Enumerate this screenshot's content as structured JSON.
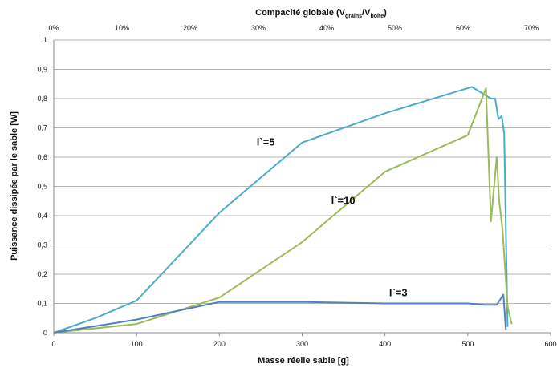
{
  "chart_data": {
    "type": "line",
    "xlabel": "Masse réelle sable [g]",
    "ylabel": "Puissance dissipée par le sable [W]",
    "secondary_x_axis": {
      "label_main": "Compacité globale (V",
      "label_sub1": "grains",
      "label_mid": "/V",
      "label_sub2": "boîte",
      "label_end": ")",
      "ticks": [
        "0%",
        "10%",
        "20%",
        "30%",
        "40%",
        "50%",
        "60%",
        "70%"
      ]
    },
    "xlim": [
      0,
      600
    ],
    "ylim": [
      0,
      1
    ],
    "x_ticks": [
      "0",
      "100",
      "200",
      "300",
      "400",
      "500",
      "600"
    ],
    "y_ticks": [
      "0",
      "0,1",
      "0,2",
      "0,3",
      "0,4",
      "0,5",
      "0,6",
      "0,7",
      "0,8",
      "0,9",
      "1"
    ],
    "grid": "horizontal",
    "series": [
      {
        "color": "#4bacc6",
        "points": [
          [
            0,
            0
          ],
          [
            50,
            0.05
          ],
          [
            100,
            0.11
          ],
          [
            200,
            0.41
          ],
          [
            300,
            0.65
          ],
          [
            400,
            0.75
          ],
          [
            505,
            0.84
          ],
          [
            528,
            0.8
          ],
          [
            533,
            0.8
          ],
          [
            537,
            0.73
          ],
          [
            541,
            0.74
          ],
          [
            544,
            0.68
          ],
          [
            548,
            0.02
          ]
        ]
      },
      {
        "color": "#9bbb59",
        "points": [
          [
            0,
            0
          ],
          [
            100,
            0.03
          ],
          [
            200,
            0.12
          ],
          [
            300,
            0.31
          ],
          [
            400,
            0.55
          ],
          [
            500,
            0.675
          ],
          [
            522,
            0.835
          ],
          [
            528,
            0.38
          ],
          [
            535,
            0.6
          ],
          [
            538,
            0.45
          ],
          [
            542,
            0.35
          ],
          [
            548,
            0.09
          ],
          [
            553,
            0.03
          ]
        ]
      },
      {
        "color": "#4f81bd",
        "points": [
          [
            0,
            0
          ],
          [
            100,
            0.045
          ],
          [
            200,
            0.105
          ],
          [
            300,
            0.105
          ],
          [
            400,
            0.1
          ],
          [
            500,
            0.1
          ],
          [
            520,
            0.095
          ],
          [
            535,
            0.095
          ],
          [
            543,
            0.13
          ],
          [
            546,
            0.01
          ]
        ]
      }
    ],
    "annotations": [
      {
        "text": "l`=5",
        "x": 245,
        "y": 0.64
      },
      {
        "text": "l`=10",
        "x": 335,
        "y": 0.44
      },
      {
        "text": "l`=3",
        "x": 405,
        "y": 0.125
      }
    ]
  }
}
